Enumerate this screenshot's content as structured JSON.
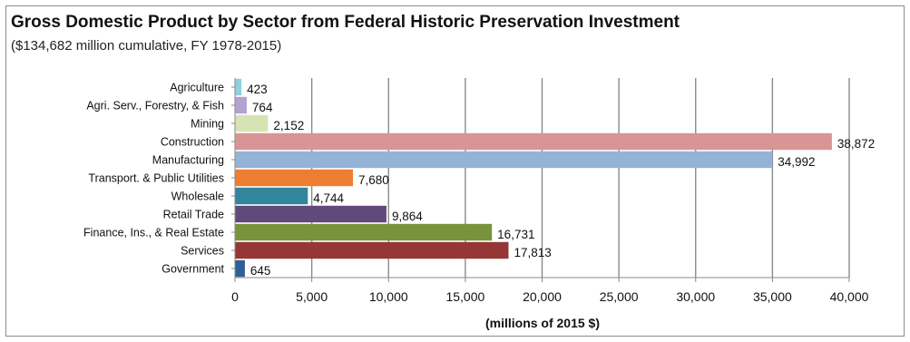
{
  "chart_data": {
    "type": "bar",
    "orientation": "horizontal",
    "title": "Gross Domestic Product by Sector from Federal Historic Preservation Investment",
    "subtitle": "($134,682 million cumulative, FY 1978-2015)",
    "xlabel": "(millions of 2015 $)",
    "ylabel": "",
    "xlim": [
      0,
      40000
    ],
    "x_ticks": [
      0,
      5000,
      10000,
      15000,
      20000,
      25000,
      30000,
      35000,
      40000
    ],
    "x_tick_labels": [
      "0",
      "5,000",
      "10,000",
      "15,000",
      "20,000",
      "25,000",
      "30,000",
      "35,000",
      "40,000"
    ],
    "grid": "vertical",
    "legend": "none",
    "categories": [
      "Agriculture",
      "Agri. Serv., Forestry, & Fish",
      "Mining",
      "Construction",
      "Manufacturing",
      "Transport. & Public Utilities",
      "Wholesale",
      "Retail Trade",
      "Finance, Ins., & Real Estate",
      "Services",
      "Government"
    ],
    "values": [
      423,
      764,
      2152,
      38872,
      34992,
      7680,
      4744,
      9864,
      16731,
      17813,
      645
    ],
    "value_labels": [
      "423",
      "764",
      "2,152",
      "38,872",
      "34,992",
      "7,680",
      "4,744",
      "9,864",
      "16,731",
      "17,813",
      "645"
    ],
    "colors": [
      "#8fd1dc",
      "#b3a1d0",
      "#d6e4b5",
      "#d99595",
      "#95b3d7",
      "#ed7d31",
      "#31859c",
      "#604a7b",
      "#77933c",
      "#953735",
      "#2f5f96"
    ]
  }
}
